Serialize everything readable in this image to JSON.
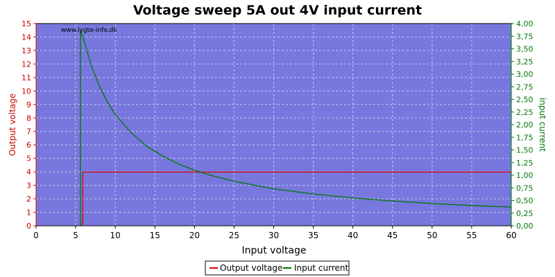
{
  "chart_data": {
    "type": "line",
    "title": "Voltage sweep 5A out 4V input current",
    "watermark": "www.lygte-info.dk",
    "xlabel": "Input voltage",
    "ylabel_left": "Output voltage",
    "ylabel_right": "input current",
    "xlim": [
      0,
      60
    ],
    "ylim_left": [
      0,
      15
    ],
    "ylim_right": [
      0,
      4
    ],
    "x_ticks": [
      "0",
      "5",
      "10",
      "15",
      "20",
      "25",
      "30",
      "35",
      "40",
      "45",
      "50",
      "55",
      "60"
    ],
    "y_left_ticks": [
      "0",
      "1",
      "2",
      "3",
      "4",
      "5",
      "6",
      "7",
      "8",
      "9",
      "10",
      "11",
      "12",
      "13",
      "14",
      "15"
    ],
    "y_right_ticks": [
      "0,00",
      "0,25",
      "0,50",
      "0,75",
      "1,00",
      "1,25",
      "1,50",
      "1,75",
      "2,00",
      "2,25",
      "2,50",
      "2,75",
      "3,00",
      "3,25",
      "3,50",
      "3,75",
      "4,00"
    ],
    "grid": true,
    "legend_position": "bottom-center",
    "colors": {
      "plot_background": "#7777dd",
      "output_voltage": "#dd0000",
      "input_current": "#007700",
      "left_axis": "#cc0000",
      "right_axis": "#007700"
    },
    "series": [
      {
        "name": "Output voltage",
        "axis": "left",
        "x": [
          5.8,
          5.8,
          5.9,
          5.9,
          6.0,
          10,
          20,
          30,
          40,
          50,
          60
        ],
        "y": [
          0,
          0.2,
          0.2,
          4.0,
          3.98,
          3.98,
          3.98,
          3.98,
          3.98,
          3.98,
          3.98
        ]
      },
      {
        "name": "Input current",
        "axis": "right",
        "x": [
          5.6,
          5.6,
          6,
          7,
          8,
          9,
          10,
          12,
          14,
          16,
          18,
          20,
          22,
          25,
          28,
          30,
          35,
          40,
          45,
          50,
          55,
          60
        ],
        "y": [
          0,
          3.85,
          3.7,
          3.15,
          2.76,
          2.45,
          2.2,
          1.84,
          1.57,
          1.38,
          1.22,
          1.1,
          1.0,
          0.88,
          0.79,
          0.73,
          0.63,
          0.55,
          0.49,
          0.44,
          0.4,
          0.37
        ]
      }
    ]
  }
}
